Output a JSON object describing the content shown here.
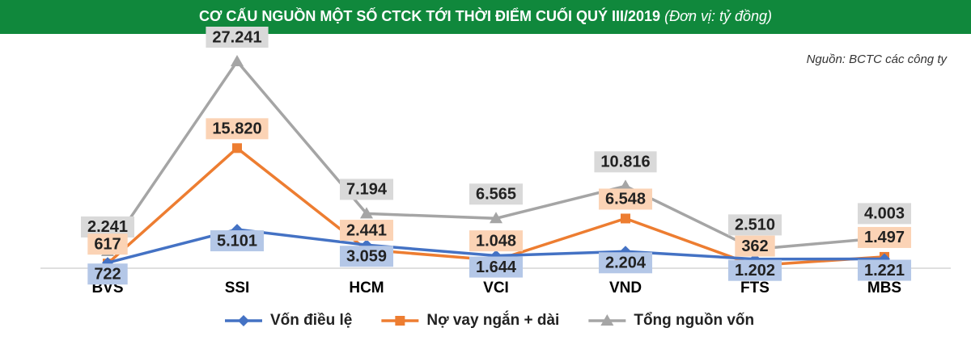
{
  "chart_data": {
    "type": "line",
    "title": "CƠ CẤU NGUỒN MỘT SỐ CTCK TỚI THỜI ĐIỂM CUỐI QUÝ III/2019",
    "subtitle": "(Đơn vị: tỷ đồng)",
    "source": "Nguồn: BCTC các công ty",
    "categories": [
      "BVS",
      "SSI",
      "HCM",
      "VCI",
      "VND",
      "FTS",
      "MBS"
    ],
    "series": [
      {
        "name": "Vốn điều lệ",
        "color": "#4472c4",
        "marker": "diamond",
        "label_fill": "#b4c7e7",
        "values": [
          722,
          5101,
          3059,
          1644,
          2204,
          1202,
          1221
        ],
        "value_labels": [
          "722",
          "5.101",
          "3.059",
          "1.644",
          "2.204",
          "1.202",
          "1.221"
        ]
      },
      {
        "name": "Nợ vay ngắn + dài",
        "color": "#ed7d31",
        "marker": "square",
        "label_fill": "#fbd3b5",
        "values": [
          617,
          15820,
          2441,
          1048,
          6548,
          362,
          1497
        ],
        "value_labels": [
          "617",
          "15.820",
          "2.441",
          "1.048",
          "6.548",
          "362",
          "1.497"
        ]
      },
      {
        "name": "Tổng nguồn vốn",
        "color": "#a5a5a5",
        "marker": "triangle",
        "label_fill": "#d9d9d9",
        "values": [
          2241,
          27241,
          7194,
          6565,
          10816,
          2510,
          4003
        ],
        "value_labels": [
          "2.241",
          "27.241",
          "7.194",
          "6.565",
          "10.816",
          "2.510",
          "4.003"
        ]
      }
    ]
  }
}
